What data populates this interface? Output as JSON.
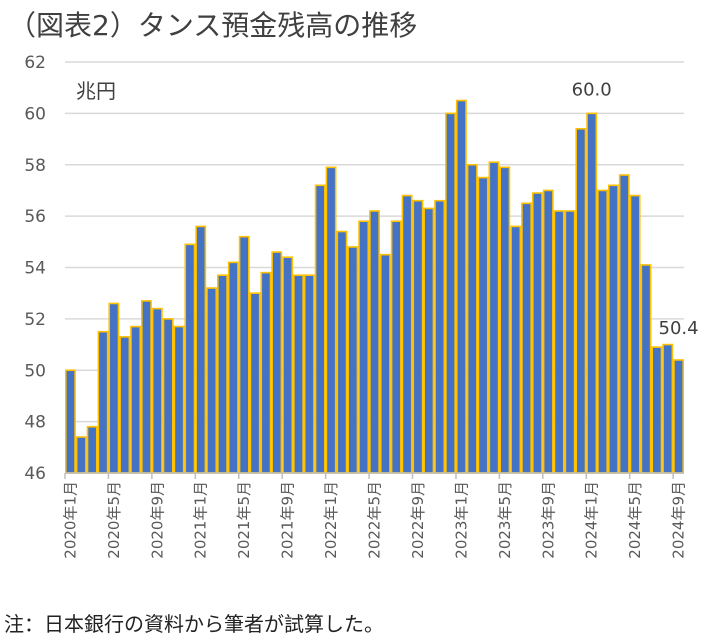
{
  "title": "（図表2）タンス預金残高の推移",
  "note": "注：日本銀行の資料から筆者が試算した。",
  "chart_data": {
    "type": "bar",
    "title": "（図表2）タンス預金残高の推移",
    "unit_label": "兆円",
    "ylim": [
      46,
      62
    ],
    "yticks": [
      46,
      48,
      50,
      52,
      54,
      56,
      58,
      60,
      62
    ],
    "grid": true,
    "colors": {
      "fill": "#4472C4",
      "border": "#FFC000",
      "grid": "#D9D9D9"
    },
    "x_tick_labels": [
      "2020年1月",
      "2020年5月",
      "2020年9月",
      "2021年1月",
      "2021年5月",
      "2021年9月",
      "2022年1月",
      "2022年5月",
      "2022年9月",
      "2023年1月",
      "2023年5月",
      "2023年9月",
      "2024年1月",
      "2024年5月",
      "2024年9月"
    ],
    "x_tick_every": 4,
    "values": [
      50.0,
      47.4,
      47.8,
      51.5,
      52.6,
      51.3,
      51.7,
      52.7,
      52.4,
      52.0,
      51.7,
      54.9,
      55.6,
      53.2,
      53.7,
      54.2,
      55.2,
      53.0,
      53.8,
      54.6,
      54.4,
      53.7,
      53.7,
      57.2,
      57.9,
      55.4,
      54.8,
      55.8,
      56.2,
      54.5,
      55.8,
      56.8,
      56.6,
      56.3,
      56.6,
      60.0,
      60.5,
      58.0,
      57.5,
      58.1,
      57.9,
      55.6,
      56.5,
      56.9,
      57.0,
      56.2,
      56.2,
      59.4,
      60.0,
      57.0,
      57.2,
      57.6,
      56.8,
      54.1,
      50.9,
      51.0,
      50.4
    ],
    "data_labels": [
      {
        "index": 48,
        "text": "60.0"
      },
      {
        "index": 56,
        "text": "50.4"
      }
    ]
  }
}
